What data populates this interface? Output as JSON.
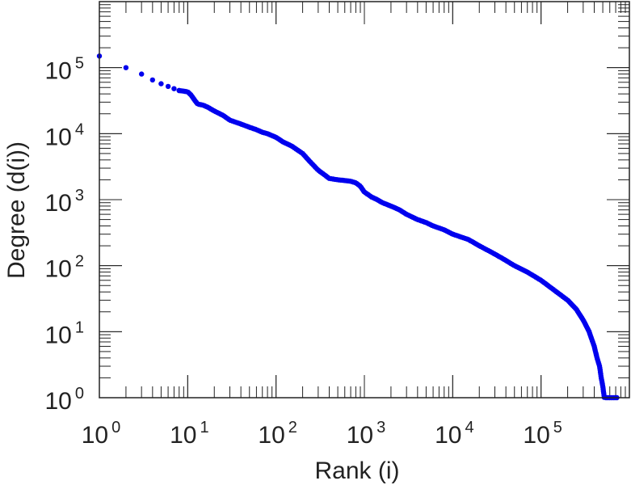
{
  "chart_data": {
    "type": "scatter",
    "title": "",
    "xlabel": "Rank (i)",
    "ylabel": "Degree (d(i))",
    "x_scale": "log",
    "y_scale": "log",
    "xlim": [
      1,
      1000000
    ],
    "ylim": [
      1,
      1000000
    ],
    "grid": false,
    "marker_color": "#0000ee",
    "x_ticks": [
      {
        "base": "10",
        "exp": "0",
        "value": 1
      },
      {
        "base": "10",
        "exp": "1",
        "value": 10
      },
      {
        "base": "10",
        "exp": "2",
        "value": 100
      },
      {
        "base": "10",
        "exp": "3",
        "value": 1000
      },
      {
        "base": "10",
        "exp": "4",
        "value": 10000
      },
      {
        "base": "10",
        "exp": "5",
        "value": 100000
      }
    ],
    "y_ticks": [
      {
        "base": "10",
        "exp": "0",
        "value": 1
      },
      {
        "base": "10",
        "exp": "1",
        "value": 10
      },
      {
        "base": "10",
        "exp": "2",
        "value": 100
      },
      {
        "base": "10",
        "exp": "3",
        "value": 1000
      },
      {
        "base": "10",
        "exp": "4",
        "value": 10000
      },
      {
        "base": "10",
        "exp": "5",
        "value": 100000
      }
    ],
    "series": [
      {
        "x": [
          1,
          2,
          3,
          4,
          5,
          6,
          7,
          8,
          9,
          10,
          11,
          12,
          13,
          15,
          17,
          20,
          25,
          30,
          40,
          50,
          60,
          70,
          80,
          100,
          120,
          150,
          200,
          250,
          300,
          350,
          400,
          500,
          600,
          700,
          800,
          900,
          1000,
          1100,
          1200,
          1400,
          1600,
          2000,
          2500,
          3000,
          4000,
          5000,
          6000,
          8000,
          10000,
          15000,
          20000,
          30000,
          40000,
          50000,
          70000,
          100000,
          150000,
          200000,
          250000,
          300000,
          350000,
          400000,
          430000,
          460000,
          480000,
          500000,
          520000,
          540000,
          560000,
          580000,
          600000,
          620000,
          640000,
          670000,
          700000,
          750000
        ],
        "y": [
          150000,
          100000,
          80000,
          65000,
          57000,
          52000,
          48000,
          45000,
          44000,
          43000,
          38000,
          32000,
          28000,
          27000,
          25000,
          22000,
          19000,
          16000,
          14000,
          12500,
          11500,
          10500,
          10000,
          8800,
          7500,
          6500,
          5000,
          3600,
          2800,
          2400,
          2100,
          2000,
          1950,
          1900,
          1800,
          1600,
          1300,
          1200,
          1100,
          1000,
          900,
          800,
          700,
          600,
          500,
          450,
          400,
          350,
          300,
          250,
          200,
          150,
          120,
          100,
          80,
          60,
          40,
          30,
          22,
          15,
          10,
          6,
          4,
          3,
          2,
          1.5,
          1,
          1,
          1,
          1,
          1,
          1,
          1,
          1,
          1,
          1
        ]
      }
    ]
  }
}
